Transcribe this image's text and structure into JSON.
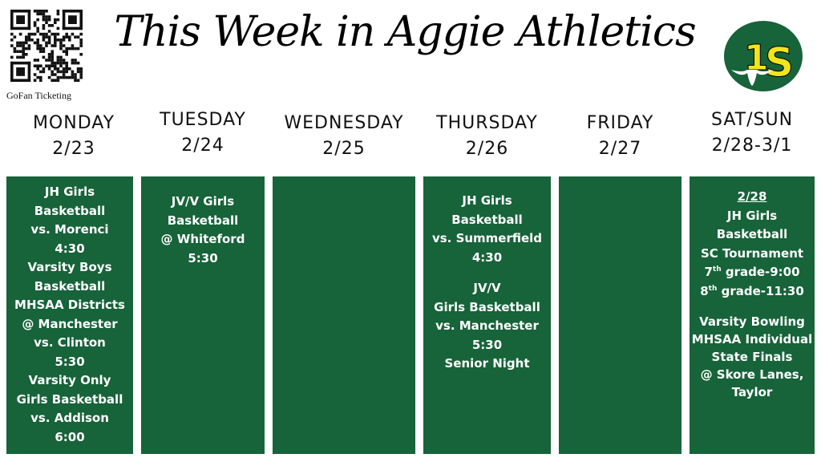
{
  "header": {
    "title": "This Week in Aggie Athletics",
    "qr_label": "GoFan Ticketing",
    "logo_text": "SC"
  },
  "colors": {
    "green": "#17633a",
    "gold": "#f2e51a"
  },
  "days": [
    {
      "name": "MONDAY",
      "date": "2/23"
    },
    {
      "name": "TUESDAY",
      "date": "2/24"
    },
    {
      "name": "WEDNESDAY",
      "date": "2/25"
    },
    {
      "name": "THURSDAY",
      "date": "2/26"
    },
    {
      "name": "FRIDAY",
      "date": "2/27"
    },
    {
      "name": "SAT/SUN",
      "date": "2/28-3/1"
    }
  ],
  "events": {
    "monday": [
      "JH Girls",
      "Basketball",
      "vs. Morenci",
      "4:30",
      "Varsity Boys",
      "Basketball",
      "MHSAA Districts",
      "@ Manchester",
      "vs. Clinton",
      "5:30",
      "Varsity Only",
      "Girls Basketball",
      "vs. Addison",
      "6:00"
    ],
    "tuesday": [
      "JV/V Girls",
      "Basketball",
      "@ Whiteford",
      "5:30"
    ],
    "thursday_a": [
      "JH Girls",
      "Basketball",
      "vs. Summerfield",
      "4:30"
    ],
    "thursday_b": [
      "JV/V",
      "Girls Basketball",
      "vs. Manchester",
      "5:30",
      "Senior Night"
    ],
    "weekend": {
      "date": "2/28",
      "lines_a": [
        "JH Girls",
        "Basketball",
        "SC Tournament"
      ],
      "grade7": {
        "num": "7",
        "sup": "th",
        "rest": " grade-9:00"
      },
      "grade8": {
        "num": "8",
        "sup": "th",
        "rest": " grade-11:30"
      },
      "lines_b": [
        "Varsity Bowling",
        "MHSAA Individual",
        "State Finals",
        "@ Skore Lanes,",
        "Taylor"
      ]
    }
  }
}
